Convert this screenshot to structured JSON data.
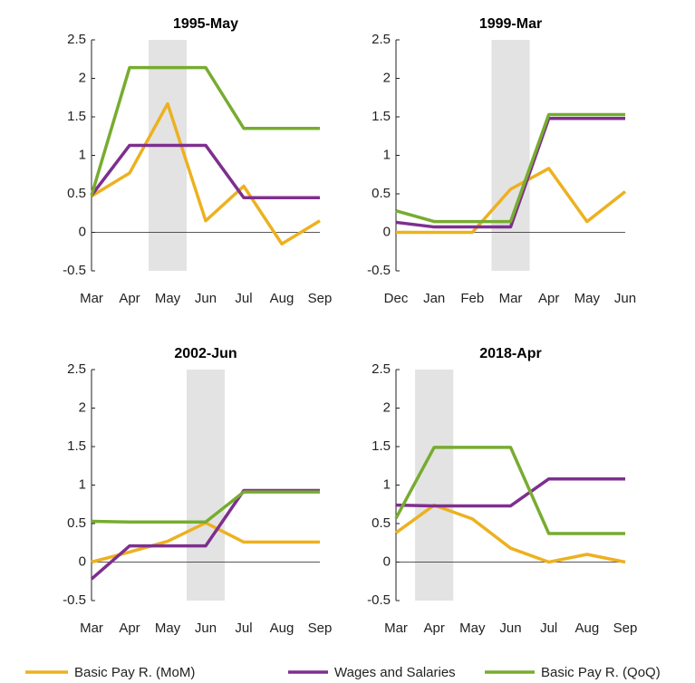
{
  "chart_data": [
    {
      "type": "line",
      "title": "1995-May",
      "categories": [
        "Mar",
        "Apr",
        "May",
        "Jun",
        "Jul",
        "Aug",
        "Sep"
      ],
      "highlight_category": "May",
      "ylim": [
        -0.5,
        2.5
      ],
      "yticks": [
        -0.5,
        0,
        0.5,
        1,
        1.5,
        2,
        2.5
      ],
      "zero_line": true,
      "series": [
        {
          "name": "Basic Pay R. (MoM)",
          "color": "#edb120",
          "values": [
            0.47,
            0.77,
            1.67,
            0.15,
            0.6,
            -0.15,
            0.15
          ]
        },
        {
          "name": "Wages and Salaries",
          "color": "#7e2f8e",
          "values": [
            0.48,
            1.13,
            1.13,
            1.13,
            0.45,
            0.45,
            0.45
          ]
        },
        {
          "name": "Basic Pay R. (QoQ)",
          "color": "#77ac30",
          "values": [
            0.48,
            2.14,
            2.14,
            2.14,
            1.35,
            1.35,
            1.35
          ]
        }
      ]
    },
    {
      "type": "line",
      "title": "1999-Mar",
      "categories": [
        "Dec",
        "Jan",
        "Feb",
        "Mar",
        "Apr",
        "May",
        "Jun"
      ],
      "highlight_category": "Mar",
      "ylim": [
        -0.5,
        2.5
      ],
      "yticks": [
        -0.5,
        0,
        0.5,
        1,
        1.5,
        2,
        2.5
      ],
      "zero_line": true,
      "series": [
        {
          "name": "Basic Pay R. (MoM)",
          "color": "#edb120",
          "values": [
            0,
            0,
            0,
            0.56,
            0.83,
            0.14,
            0.53
          ]
        },
        {
          "name": "Wages and Salaries",
          "color": "#7e2f8e",
          "values": [
            0.13,
            0.07,
            0.07,
            0.07,
            1.48,
            1.48,
            1.48
          ]
        },
        {
          "name": "Basic Pay R. (QoQ)",
          "color": "#77ac30",
          "values": [
            0.28,
            0.14,
            0.14,
            0.14,
            1.53,
            1.53,
            1.53
          ]
        }
      ]
    },
    {
      "type": "line",
      "title": "2002-Jun",
      "categories": [
        "Mar",
        "Apr",
        "May",
        "Jun",
        "Jul",
        "Aug",
        "Sep"
      ],
      "highlight_category": "Jun",
      "ylim": [
        -0.5,
        2.5
      ],
      "yticks": [
        -0.5,
        0,
        0.5,
        1,
        1.5,
        2,
        2.5
      ],
      "zero_line": true,
      "series": [
        {
          "name": "Basic Pay R. (MoM)",
          "color": "#edb120",
          "values": [
            0,
            0.13,
            0.27,
            0.51,
            0.26,
            0.26,
            0.26
          ]
        },
        {
          "name": "Wages and Salaries",
          "color": "#7e2f8e",
          "values": [
            -0.22,
            0.21,
            0.21,
            0.21,
            0.93,
            0.93,
            0.93
          ]
        },
        {
          "name": "Basic Pay R. (QoQ)",
          "color": "#77ac30",
          "values": [
            0.53,
            0.52,
            0.52,
            0.52,
            0.91,
            0.91,
            0.91
          ]
        }
      ]
    },
    {
      "type": "line",
      "title": "2018-Apr",
      "categories": [
        "Mar",
        "Apr",
        "May",
        "Jun",
        "Jul",
        "Aug",
        "Sep"
      ],
      "highlight_category": "Apr",
      "ylim": [
        -0.5,
        2.5
      ],
      "yticks": [
        -0.5,
        0,
        0.5,
        1,
        1.5,
        2,
        2.5
      ],
      "zero_line": true,
      "series": [
        {
          "name": "Basic Pay R. (MoM)",
          "color": "#edb120",
          "values": [
            0.38,
            0.74,
            0.56,
            0.18,
            0,
            0.1,
            0
          ]
        },
        {
          "name": "Wages and Salaries",
          "color": "#7e2f8e",
          "values": [
            0.74,
            0.73,
            0.73,
            0.73,
            1.08,
            1.08,
            1.08
          ]
        },
        {
          "name": "Basic Pay R. (QoQ)",
          "color": "#77ac30",
          "values": [
            0.57,
            1.49,
            1.49,
            1.49,
            0.37,
            0.37,
            0.37
          ]
        }
      ]
    }
  ]
}
